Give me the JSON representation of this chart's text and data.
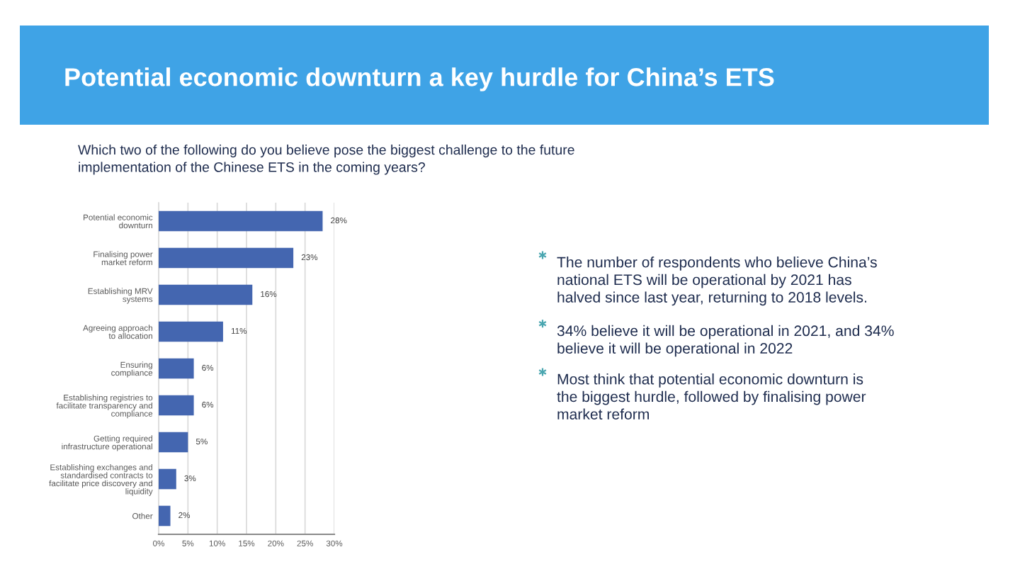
{
  "chart_data": {
    "type": "bar",
    "orientation": "horizontal",
    "title": "Potential economic downturn a key hurdle for China’s ETS",
    "subtitle": "Which two of the following do you believe pose the biggest challenge to the future\nimplementation of the Chinese ETS in the coming years?",
    "categories": [
      "Potential economic\ndownturn",
      "Finalising power\nmarket reform",
      "Establishing MRV\nsystems",
      "Agreeing approach\nto allocation",
      "Ensuring\ncompliance",
      "Establishing registries to\nfacilitate transparency and\ncompliance",
      "Getting required\ninfrastructure operational",
      "Establishing exchanges and\nstandardised contracts to\nfacilitate price discovery and\nliquidity",
      "Other"
    ],
    "values": [
      28,
      23,
      16,
      11,
      6,
      6,
      5,
      3,
      2
    ],
    "value_labels": [
      "28%",
      "23%",
      "16%",
      "11%",
      "6%",
      "6%",
      "5%",
      "3%",
      "2%"
    ],
    "color": "#4466b0",
    "xlim": [
      0,
      30
    ],
    "xticks": [
      {
        "value": 0,
        "label": "0%"
      },
      {
        "value": 5,
        "label": "5%"
      },
      {
        "value": 10,
        "label": "10%"
      },
      {
        "value": 15,
        "label": "15%"
      },
      {
        "value": 20,
        "label": "20%"
      },
      {
        "value": 25,
        "label": "25%"
      },
      {
        "value": 30,
        "label": "30%"
      }
    ],
    "grid": "x",
    "annotations": [
      "The number of respondents who believe China’s\nnational ETS will be operational by 2021 has\nhalved since last year, returning to 2018 levels.",
      "34% believe it will be operational in 2021, and 34%\nbelieve it will be operational in 2022",
      "Most think that potential economic downturn is\nthe biggest hurdle, followed by finalising power\nmarket reform"
    ]
  }
}
